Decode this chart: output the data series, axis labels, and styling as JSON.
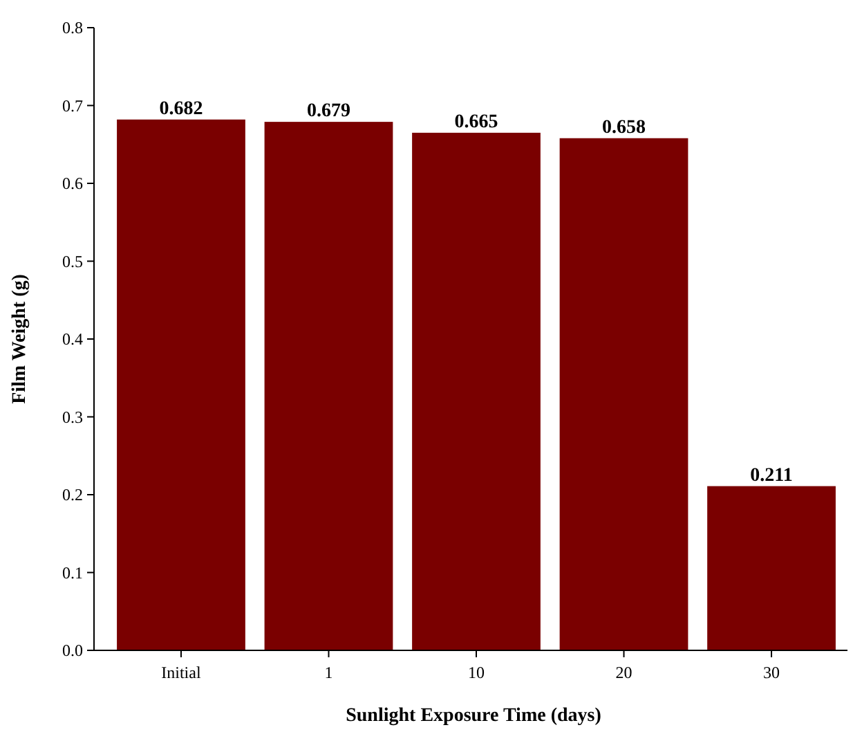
{
  "chart_data": {
    "type": "bar",
    "xlabel": "Sunlight Exposure Time (days)",
    "ylabel": "Film Weight (g)",
    "categories": [
      "Initial",
      "1",
      "10",
      "20",
      "30"
    ],
    "values": [
      0.682,
      0.679,
      0.665,
      0.658,
      0.211
    ],
    "color": "#7a0000",
    "ylim": [
      0,
      0.8
    ],
    "yticks": [
      {
        "value": 0,
        "label": "0.0"
      },
      0.1,
      0.2,
      0.3,
      0.4,
      0.5,
      0.6,
      0.7,
      0.8
    ],
    "data_labels": true
  }
}
